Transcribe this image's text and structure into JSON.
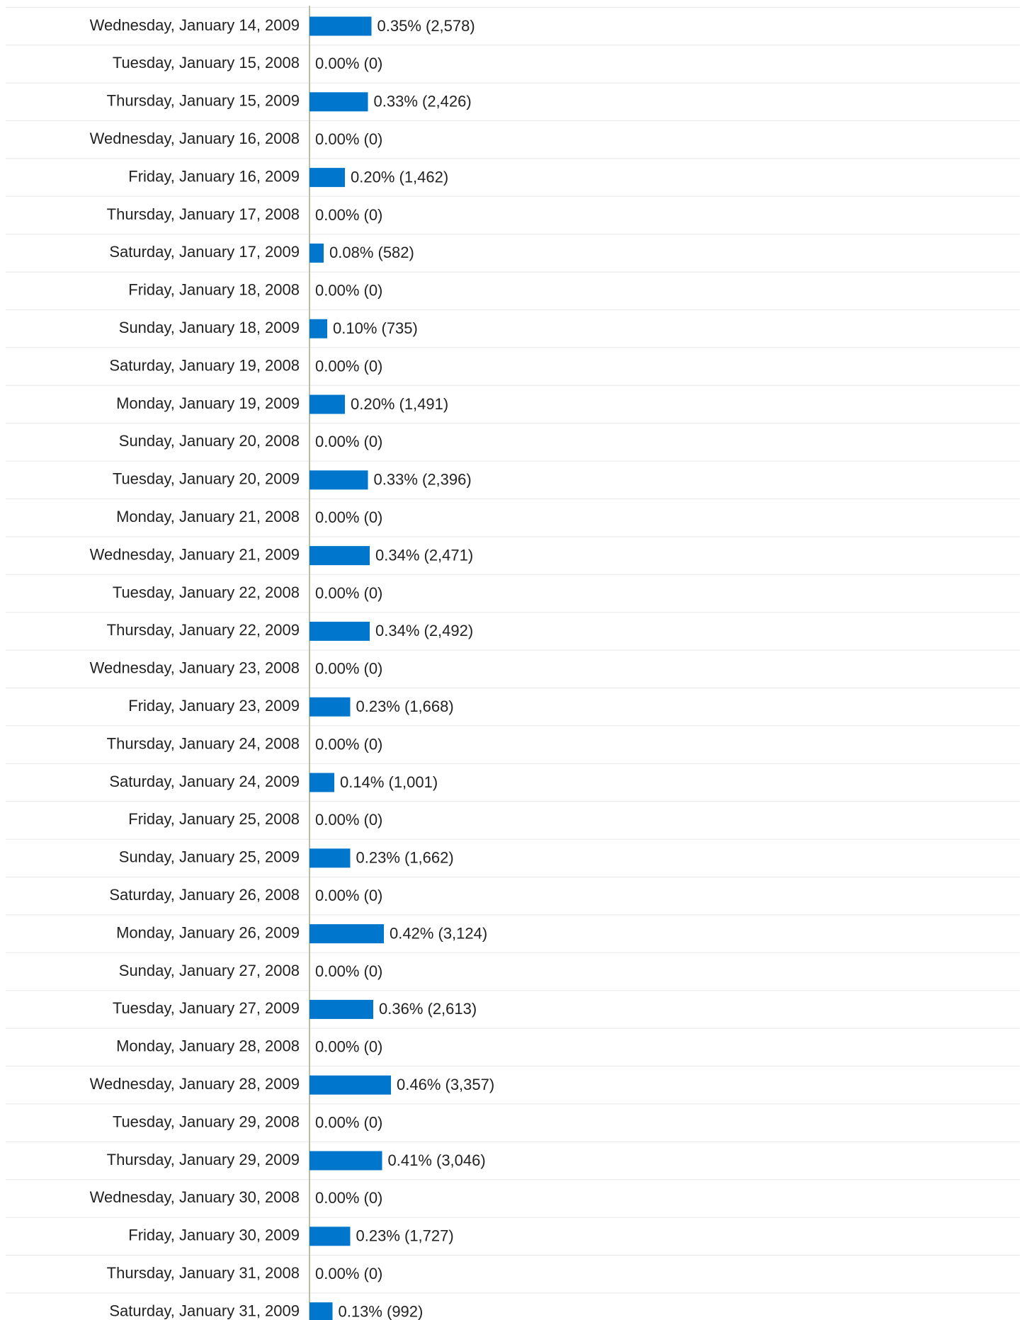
{
  "chart_data": {
    "type": "hbar",
    "color": "#0077cc",
    "xlim": [
      0,
      4
    ],
    "categories": [
      "Wednesday, January 14, 2009",
      "Tuesday, January 15, 2008",
      "Thursday, January 15, 2009",
      "Wednesday, January 16, 2008",
      "Friday, January 16, 2009",
      "Thursday, January 17, 2008",
      "Saturday, January 17, 2009",
      "Friday, January 18, 2008",
      "Sunday, January 18, 2009",
      "Saturday, January 19, 2008",
      "Monday, January 19, 2009",
      "Sunday, January 20, 2008",
      "Tuesday, January 20, 2009",
      "Monday, January 21, 2008",
      "Wednesday, January 21, 2009",
      "Tuesday, January 22, 2008",
      "Thursday, January 22, 2009",
      "Wednesday, January 23, 2008",
      "Friday, January 23, 2009",
      "Thursday, January 24, 2008",
      "Saturday, January 24, 2009",
      "Friday, January 25, 2008",
      "Sunday, January 25, 2009",
      "Saturday, January 26, 2008",
      "Monday, January 26, 2009",
      "Sunday, January 27, 2008",
      "Tuesday, January 27, 2009",
      "Monday, January 28, 2008",
      "Wednesday, January 28, 2009",
      "Tuesday, January 29, 2008",
      "Thursday, January 29, 2009",
      "Wednesday, January 30, 2008",
      "Friday, January 30, 2009",
      "Thursday, January 31, 2008",
      "Saturday, January 31, 2009"
    ],
    "values": [
      0.35,
      0,
      0.33,
      0,
      0.2,
      0,
      0.08,
      0,
      0.1,
      0,
      0.2,
      0,
      0.33,
      0,
      0.34,
      0,
      0.34,
      0,
      0.23,
      0,
      0.14,
      0,
      0.23,
      0,
      0.42,
      0,
      0.36,
      0,
      0.46,
      0,
      0.41,
      0,
      0.23,
      0,
      0.13
    ],
    "value_labels": [
      "0.35% (2,578)",
      "0.00% (0)",
      "0.33% (2,426)",
      "0.00% (0)",
      "0.20% (1,462)",
      "0.00% (0)",
      "0.08% (582)",
      "0.00% (0)",
      "0.10% (735)",
      "0.00% (0)",
      "0.20% (1,491)",
      "0.00% (0)",
      "0.33% (2,396)",
      "0.00% (0)",
      "0.34% (2,471)",
      "0.00% (0)",
      "0.34% (2,492)",
      "0.00% (0)",
      "0.23% (1,668)",
      "0.00% (0)",
      "0.14% (1,001)",
      "0.00% (0)",
      "0.23% (1,662)",
      "0.00% (0)",
      "0.42% (3,124)",
      "0.00% (0)",
      "0.36% (2,613)",
      "0.00% (0)",
      "0.46% (3,357)",
      "0.00% (0)",
      "0.41% (3,046)",
      "0.00% (0)",
      "0.23% (1,727)",
      "0.00% (0)",
      "0.13% (992)"
    ]
  }
}
